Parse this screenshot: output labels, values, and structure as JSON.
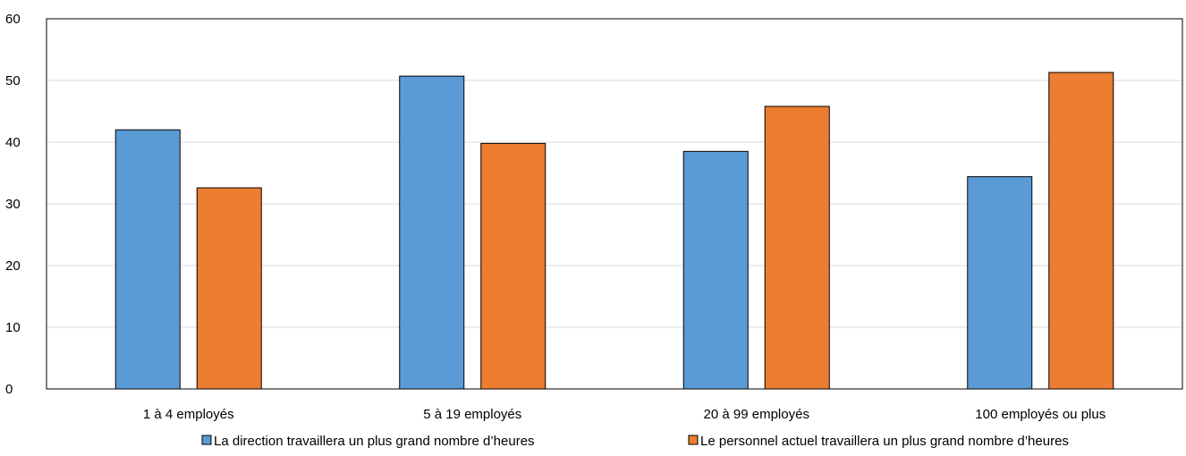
{
  "chart_data": {
    "type": "bar",
    "title": "",
    "xlabel": "",
    "ylabel": "",
    "categories": [
      "1 à 4 employés",
      "5 à 19 employés",
      "20 à 99 employés",
      "100 employés ou plus"
    ],
    "series": [
      {
        "name": "La direction travaillera un plus grand nombre d’heures",
        "color": "#5b9bd5",
        "values": [
          42.0,
          50.7,
          38.5,
          34.4
        ]
      },
      {
        "name": "Le personnel actuel travaillera un plus grand nombre d’heures",
        "color": "#ed7d31",
        "values": [
          32.6,
          39.8,
          45.8,
          51.3
        ]
      }
    ],
    "ylim": [
      0,
      60
    ],
    "yticks": [
      0,
      10,
      20,
      30,
      40,
      50,
      60
    ],
    "grid": true,
    "legend_position": "bottom"
  }
}
